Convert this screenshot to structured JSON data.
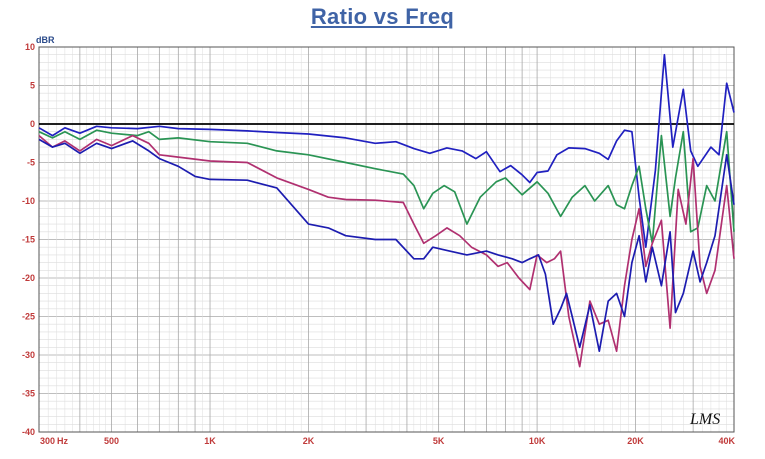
{
  "title": "Ratio vs Freq",
  "watermark": "LMS",
  "chart_data": {
    "type": "line",
    "title": "Ratio vs Freq",
    "ylabel": "dBR",
    "xlabel": "",
    "x_scale": "log",
    "xlim": [
      300,
      40000
    ],
    "ylim": [
      -40,
      10
    ],
    "grid": true,
    "legend": "none",
    "y_ticks": [
      10,
      5,
      0,
      -5,
      -10,
      -15,
      -20,
      -25,
      -30,
      -35,
      -40
    ],
    "x_ticks": [
      {
        "value": 300,
        "label": "300"
      },
      {
        "value": 500,
        "label": "500"
      },
      {
        "value": 1000,
        "label": "1K"
      },
      {
        "value": 2000,
        "label": "2K"
      },
      {
        "value": 5000,
        "label": "5K"
      },
      {
        "value": 10000,
        "label": "10K"
      },
      {
        "value": 20000,
        "label": "20K"
      },
      {
        "value": 40000,
        "label": "40K"
      }
    ],
    "x_unit_label": "Hz",
    "reference": {
      "value": 0,
      "color": "#000000"
    },
    "series": [
      {
        "color": "#2020c0",
        "points": [
          [
            300,
            -0.5
          ],
          [
            330,
            -1.5
          ],
          [
            360,
            -0.5
          ],
          [
            400,
            -1.2
          ],
          [
            450,
            -0.3
          ],
          [
            500,
            -0.5
          ],
          [
            600,
            -0.6
          ],
          [
            700,
            -0.3
          ],
          [
            800,
            -0.6
          ],
          [
            1000,
            -0.7
          ],
          [
            1300,
            -0.9
          ],
          [
            1600,
            -1.1
          ],
          [
            2000,
            -1.3
          ],
          [
            2600,
            -1.8
          ],
          [
            3200,
            -2.5
          ],
          [
            3700,
            -2.3
          ],
          [
            4200,
            -3.2
          ],
          [
            4700,
            -3.8
          ],
          [
            5300,
            -3.1
          ],
          [
            5900,
            -3.5
          ],
          [
            6500,
            -4.5
          ],
          [
            7000,
            -3.6
          ],
          [
            7700,
            -6.2
          ],
          [
            8300,
            -5.4
          ],
          [
            9000,
            -6.6
          ],
          [
            9500,
            -7.6
          ],
          [
            10000,
            -6.3
          ],
          [
            10800,
            -6.1
          ],
          [
            11500,
            -4.0
          ],
          [
            12500,
            -3.1
          ],
          [
            14000,
            -3.2
          ],
          [
            15500,
            -3.8
          ],
          [
            16500,
            -4.6
          ],
          [
            17500,
            -2.2
          ],
          [
            18500,
            -0.8
          ],
          [
            19500,
            -1.0
          ],
          [
            20500,
            -9.5
          ],
          [
            21500,
            -16.0
          ],
          [
            23000,
            -6.0
          ],
          [
            24500,
            9.0
          ],
          [
            26000,
            -3.0
          ],
          [
            28000,
            4.5
          ],
          [
            29500,
            -3.5
          ],
          [
            31000,
            -5.5
          ],
          [
            34000,
            -3.0
          ],
          [
            36000,
            -4.0
          ],
          [
            38000,
            5.3
          ],
          [
            40000,
            1.5
          ]
        ]
      },
      {
        "color": "#2a9454",
        "points": [
          [
            300,
            -1.0
          ],
          [
            330,
            -1.8
          ],
          [
            360,
            -1.0
          ],
          [
            400,
            -2.0
          ],
          [
            450,
            -0.8
          ],
          [
            500,
            -1.2
          ],
          [
            600,
            -1.5
          ],
          [
            650,
            -1.0
          ],
          [
            700,
            -2.0
          ],
          [
            800,
            -1.8
          ],
          [
            1000,
            -2.3
          ],
          [
            1300,
            -2.5
          ],
          [
            1600,
            -3.5
          ],
          [
            2000,
            -4.0
          ],
          [
            2600,
            -5.0
          ],
          [
            3200,
            -5.8
          ],
          [
            3900,
            -6.5
          ],
          [
            4200,
            -8.0
          ],
          [
            4500,
            -11.0
          ],
          [
            4800,
            -9.0
          ],
          [
            5200,
            -8.0
          ],
          [
            5600,
            -8.8
          ],
          [
            6100,
            -13.0
          ],
          [
            6700,
            -9.5
          ],
          [
            7500,
            -7.5
          ],
          [
            8000,
            -7.0
          ],
          [
            9000,
            -9.2
          ],
          [
            10000,
            -7.5
          ],
          [
            10800,
            -9.0
          ],
          [
            11800,
            -12.0
          ],
          [
            12800,
            -9.5
          ],
          [
            14000,
            -8.0
          ],
          [
            15000,
            -10.0
          ],
          [
            16500,
            -8.0
          ],
          [
            17500,
            -10.5
          ],
          [
            18500,
            -11.0
          ],
          [
            19500,
            -8.0
          ],
          [
            20500,
            -5.5
          ],
          [
            21500,
            -11.0
          ],
          [
            22500,
            -15.5
          ],
          [
            24000,
            -1.5
          ],
          [
            25500,
            -12.0
          ],
          [
            26500,
            -7.0
          ],
          [
            28000,
            -1.0
          ],
          [
            29500,
            -14.0
          ],
          [
            31000,
            -13.5
          ],
          [
            33000,
            -8.0
          ],
          [
            35000,
            -10.0
          ],
          [
            38000,
            -1.0
          ],
          [
            40000,
            -14.0
          ]
        ]
      },
      {
        "color": "#b03070",
        "points": [
          [
            300,
            -1.5
          ],
          [
            330,
            -3.0
          ],
          [
            360,
            -2.2
          ],
          [
            400,
            -3.5
          ],
          [
            450,
            -2.0
          ],
          [
            500,
            -2.8
          ],
          [
            580,
            -1.5
          ],
          [
            650,
            -2.5
          ],
          [
            700,
            -4.0
          ],
          [
            800,
            -4.3
          ],
          [
            1000,
            -4.8
          ],
          [
            1300,
            -5.0
          ],
          [
            1600,
            -7.0
          ],
          [
            2000,
            -8.5
          ],
          [
            2300,
            -9.5
          ],
          [
            2600,
            -9.8
          ],
          [
            3200,
            -9.9
          ],
          [
            3900,
            -10.2
          ],
          [
            4200,
            -13.0
          ],
          [
            4500,
            -15.5
          ],
          [
            4900,
            -14.5
          ],
          [
            5300,
            -13.5
          ],
          [
            5800,
            -14.5
          ],
          [
            6300,
            -16.0
          ],
          [
            7000,
            -17.0
          ],
          [
            7600,
            -18.5
          ],
          [
            8100,
            -18.0
          ],
          [
            8800,
            -20.0
          ],
          [
            9500,
            -21.5
          ],
          [
            10000,
            -17.0
          ],
          [
            10700,
            -18.0
          ],
          [
            11300,
            -17.5
          ],
          [
            11800,
            -16.5
          ],
          [
            12500,
            -25.0
          ],
          [
            13500,
            -31.5
          ],
          [
            14500,
            -23.0
          ],
          [
            15500,
            -26.0
          ],
          [
            16500,
            -25.5
          ],
          [
            17500,
            -29.5
          ],
          [
            18500,
            -21.0
          ],
          [
            19500,
            -15.0
          ],
          [
            20500,
            -11.0
          ],
          [
            21500,
            -18.5
          ],
          [
            22500,
            -15.5
          ],
          [
            24000,
            -12.5
          ],
          [
            25500,
            -26.5
          ],
          [
            27000,
            -8.5
          ],
          [
            28500,
            -13.0
          ],
          [
            30000,
            -4.5
          ],
          [
            31500,
            -18.5
          ],
          [
            33000,
            -22.0
          ],
          [
            35000,
            -19.0
          ],
          [
            38000,
            -8.0
          ],
          [
            40000,
            -17.5
          ]
        ]
      },
      {
        "color": "#1c1cb0",
        "points": [
          [
            300,
            -2.0
          ],
          [
            330,
            -3.0
          ],
          [
            360,
            -2.5
          ],
          [
            400,
            -3.8
          ],
          [
            450,
            -2.5
          ],
          [
            500,
            -3.2
          ],
          [
            580,
            -2.2
          ],
          [
            650,
            -3.5
          ],
          [
            700,
            -4.5
          ],
          [
            800,
            -5.5
          ],
          [
            900,
            -6.8
          ],
          [
            1000,
            -7.2
          ],
          [
            1300,
            -7.3
          ],
          [
            1600,
            -8.3
          ],
          [
            2000,
            -13.0
          ],
          [
            2300,
            -13.5
          ],
          [
            2600,
            -14.5
          ],
          [
            3200,
            -15.0
          ],
          [
            3700,
            -15.0
          ],
          [
            4200,
            -17.5
          ],
          [
            4500,
            -17.5
          ],
          [
            4800,
            -16.0
          ],
          [
            5400,
            -16.5
          ],
          [
            6100,
            -17.0
          ],
          [
            7000,
            -16.5
          ],
          [
            7600,
            -17.0
          ],
          [
            8400,
            -17.5
          ],
          [
            9000,
            -18.0
          ],
          [
            9500,
            -17.5
          ],
          [
            10100,
            -17.0
          ],
          [
            10600,
            -19.5
          ],
          [
            11200,
            -26.0
          ],
          [
            11800,
            -24.0
          ],
          [
            12300,
            -22.0
          ],
          [
            12800,
            -25.0
          ],
          [
            13500,
            -29.0
          ],
          [
            14500,
            -23.5
          ],
          [
            15500,
            -29.5
          ],
          [
            16500,
            -23.0
          ],
          [
            17500,
            -22.0
          ],
          [
            18500,
            -25.0
          ],
          [
            19500,
            -18.0
          ],
          [
            20500,
            -14.5
          ],
          [
            21500,
            -20.5
          ],
          [
            22500,
            -16.0
          ],
          [
            24000,
            -21.0
          ],
          [
            25500,
            -14.0
          ],
          [
            26500,
            -24.5
          ],
          [
            28000,
            -22.0
          ],
          [
            30000,
            -16.5
          ],
          [
            31500,
            -20.5
          ],
          [
            33000,
            -18.0
          ],
          [
            35000,
            -14.5
          ],
          [
            38000,
            -4.0
          ],
          [
            40000,
            -10.5
          ]
        ]
      }
    ]
  }
}
